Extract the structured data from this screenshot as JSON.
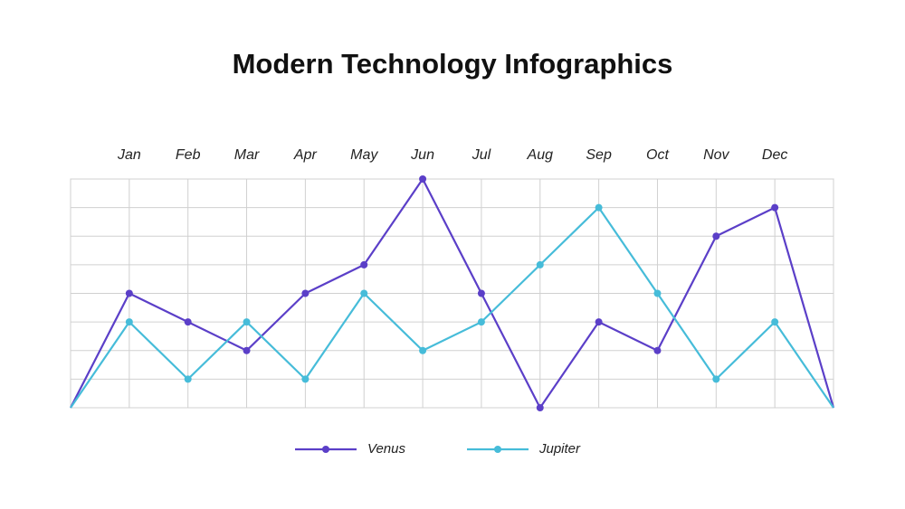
{
  "chart_data": {
    "type": "line",
    "title": "Modern Technology Infographics",
    "categories": [
      null,
      "Jan",
      "Feb",
      "Mar",
      "Apr",
      "May",
      "Jun",
      "Jul",
      "Aug",
      "Sep",
      "Oct",
      "Nov",
      "Dec",
      null
    ],
    "series": [
      {
        "name": "Venus",
        "color": "#5b3fc8",
        "values": [
          0,
          4,
          3,
          2,
          4,
          5,
          8,
          4,
          0,
          3,
          2,
          6,
          7,
          0
        ]
      },
      {
        "name": "Jupiter",
        "color": "#46bcd9",
        "values": [
          0,
          3,
          1,
          3,
          1,
          4,
          2,
          3,
          5,
          7,
          4,
          1,
          3,
          0
        ]
      }
    ],
    "ylim": [
      0,
      8
    ],
    "yticks": [
      0,
      1,
      2,
      3,
      4,
      5,
      6,
      7,
      8
    ],
    "grid": true,
    "legend": "bottom"
  }
}
